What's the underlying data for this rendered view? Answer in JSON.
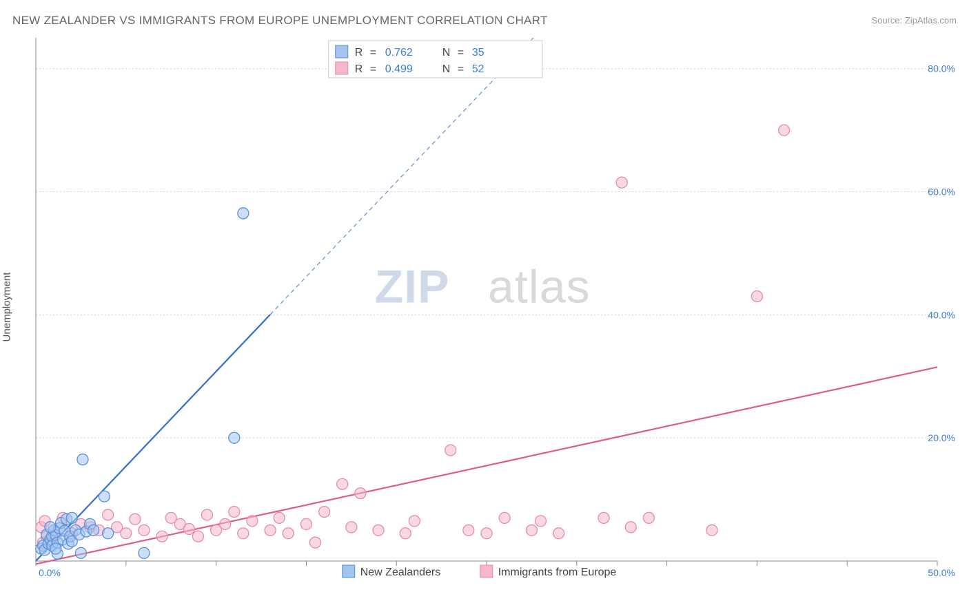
{
  "title": "NEW ZEALANDER VS IMMIGRANTS FROM EUROPE UNEMPLOYMENT CORRELATION CHART",
  "source_label": "Source: ",
  "source_value": "ZipAtlas.com",
  "ylabel": "Unemployment",
  "watermark": {
    "a": "ZIP",
    "b": "atlas"
  },
  "chart": {
    "type": "scatter",
    "background_color": "#ffffff",
    "grid_color": "#d0d0d0",
    "axis_color": "#888888",
    "tick_label_color": "#3b7dd8",
    "tick_fontsize": 14,
    "label_fontsize": 15,
    "title_fontsize": 17,
    "xlim": [
      0,
      50
    ],
    "ylim": [
      0,
      85
    ],
    "xtick_labels": [
      "0.0%",
      "50.0%"
    ],
    "xtick_positions": [
      0,
      50
    ],
    "xtick_minor_positions": [
      5,
      10,
      15,
      20,
      25,
      30,
      35,
      40,
      45
    ],
    "ytick_labels": [
      "20.0%",
      "40.0%",
      "60.0%",
      "80.0%"
    ],
    "ytick_positions": [
      20,
      40,
      60,
      80
    ],
    "marker_radius": 8,
    "line_width": 2.2,
    "series": {
      "blue": {
        "label": "New Zealanders",
        "fill_color": "#a3c4ef",
        "stroke_color": "#5a8fd6",
        "trend_color": "#2f6fd0",
        "trend_slope": 3.08,
        "trend_intercept": 0,
        "R": "0.762",
        "N": "35",
        "points": [
          [
            0.3,
            2.0
          ],
          [
            0.4,
            2.5
          ],
          [
            0.5,
            1.8
          ],
          [
            0.6,
            4.3
          ],
          [
            0.7,
            2.8
          ],
          [
            0.8,
            3.5
          ],
          [
            0.9,
            4.0
          ],
          [
            0.9,
            2.5
          ],
          [
            1.0,
            5.0
          ],
          [
            1.1,
            4.2
          ],
          [
            1.2,
            3.0
          ],
          [
            1.2,
            1.2
          ],
          [
            1.3,
            5.3
          ],
          [
            1.4,
            6.2
          ],
          [
            1.5,
            3.5
          ],
          [
            1.6,
            4.9
          ],
          [
            1.7,
            6.8
          ],
          [
            1.8,
            2.8
          ],
          [
            1.9,
            4.0
          ],
          [
            2.0,
            7.0
          ],
          [
            2.0,
            3.2
          ],
          [
            2.2,
            5.0
          ],
          [
            2.4,
            4.3
          ],
          [
            2.5,
            1.3
          ],
          [
            2.6,
            16.5
          ],
          [
            2.8,
            4.8
          ],
          [
            3.0,
            6.0
          ],
          [
            3.2,
            5.0
          ],
          [
            3.8,
            10.5
          ],
          [
            4.0,
            4.5
          ],
          [
            6.0,
            1.3
          ],
          [
            11.0,
            20.0
          ],
          [
            11.5,
            56.5
          ],
          [
            1.1,
            2.0
          ],
          [
            0.8,
            5.5
          ]
        ]
      },
      "pink": {
        "label": "Immigrants from Europe",
        "fill_color": "#f4b8ce",
        "stroke_color": "#e68bac",
        "trend_color": "#e05a8a",
        "trend_slope": 0.64,
        "trend_intercept": -0.5,
        "R": "0.499",
        "N": "52",
        "points": [
          [
            0.3,
            5.5
          ],
          [
            0.4,
            3.0
          ],
          [
            0.5,
            6.5
          ],
          [
            0.6,
            4.0
          ],
          [
            1.0,
            5.0
          ],
          [
            1.5,
            7.0
          ],
          [
            2.0,
            4.5
          ],
          [
            2.5,
            6.0
          ],
          [
            3.0,
            5.5
          ],
          [
            3.5,
            5.0
          ],
          [
            4.0,
            7.5
          ],
          [
            4.5,
            5.5
          ],
          [
            5.0,
            4.5
          ],
          [
            5.5,
            6.8
          ],
          [
            6.0,
            5.0
          ],
          [
            7.0,
            4.0
          ],
          [
            7.5,
            7.0
          ],
          [
            8.0,
            6.0
          ],
          [
            8.5,
            5.2
          ],
          [
            9.0,
            4.0
          ],
          [
            9.5,
            7.5
          ],
          [
            10.0,
            5.0
          ],
          [
            10.5,
            6.0
          ],
          [
            11.0,
            8.0
          ],
          [
            11.5,
            4.5
          ],
          [
            12.0,
            6.5
          ],
          [
            13.0,
            5.0
          ],
          [
            13.5,
            7.0
          ],
          [
            14.0,
            4.5
          ],
          [
            15.0,
            6.0
          ],
          [
            15.5,
            3.0
          ],
          [
            16.0,
            8.0
          ],
          [
            17.0,
            12.5
          ],
          [
            17.5,
            5.5
          ],
          [
            18.0,
            11.0
          ],
          [
            19.0,
            5.0
          ],
          [
            20.5,
            4.5
          ],
          [
            21.0,
            6.5
          ],
          [
            23.0,
            18.0
          ],
          [
            24.0,
            5.0
          ],
          [
            25.0,
            4.5
          ],
          [
            26.0,
            7.0
          ],
          [
            27.5,
            5.0
          ],
          [
            28.0,
            6.5
          ],
          [
            29.0,
            4.5
          ],
          [
            31.5,
            7.0
          ],
          [
            33.0,
            5.5
          ],
          [
            34.0,
            7.0
          ],
          [
            37.5,
            5.0
          ],
          [
            40.0,
            43.0
          ],
          [
            32.5,
            61.5
          ],
          [
            41.5,
            70.0
          ]
        ]
      }
    },
    "stats_box": {
      "r_label": "R",
      "n_label": "N",
      "eq": "="
    }
  },
  "bottom_legend": {
    "series1_label": "New Zealanders",
    "series2_label": "Immigrants from Europe"
  }
}
